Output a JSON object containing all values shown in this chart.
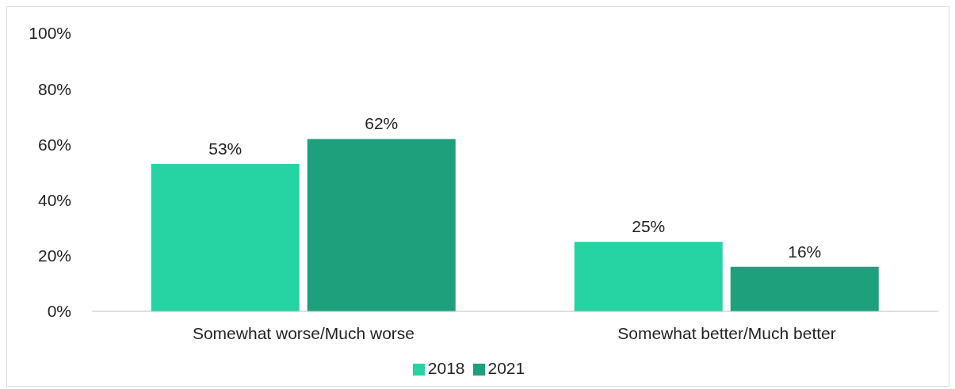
{
  "chart_data": {
    "type": "bar",
    "categories": [
      "Somewhat worse/Much worse",
      "Somewhat better/Much better"
    ],
    "series": [
      {
        "name": "2018",
        "color": "#26d3a3",
        "values": [
          53,
          25
        ],
        "value_labels": [
          "53%",
          "25%"
        ]
      },
      {
        "name": "2021",
        "color": "#1ea07d",
        "values": [
          62,
          16
        ],
        "value_labels": [
          "62%",
          "16%"
        ]
      }
    ],
    "ylim": [
      0,
      100
    ],
    "yticks": [
      {
        "value": 0,
        "label": "0%"
      },
      {
        "value": 20,
        "label": "20%"
      },
      {
        "value": 40,
        "label": "40%"
      },
      {
        "value": 60,
        "label": "60%"
      },
      {
        "value": 80,
        "label": "80%"
      },
      {
        "value": 100,
        "label": "100%"
      }
    ],
    "grid": false,
    "legend": "bottom"
  }
}
